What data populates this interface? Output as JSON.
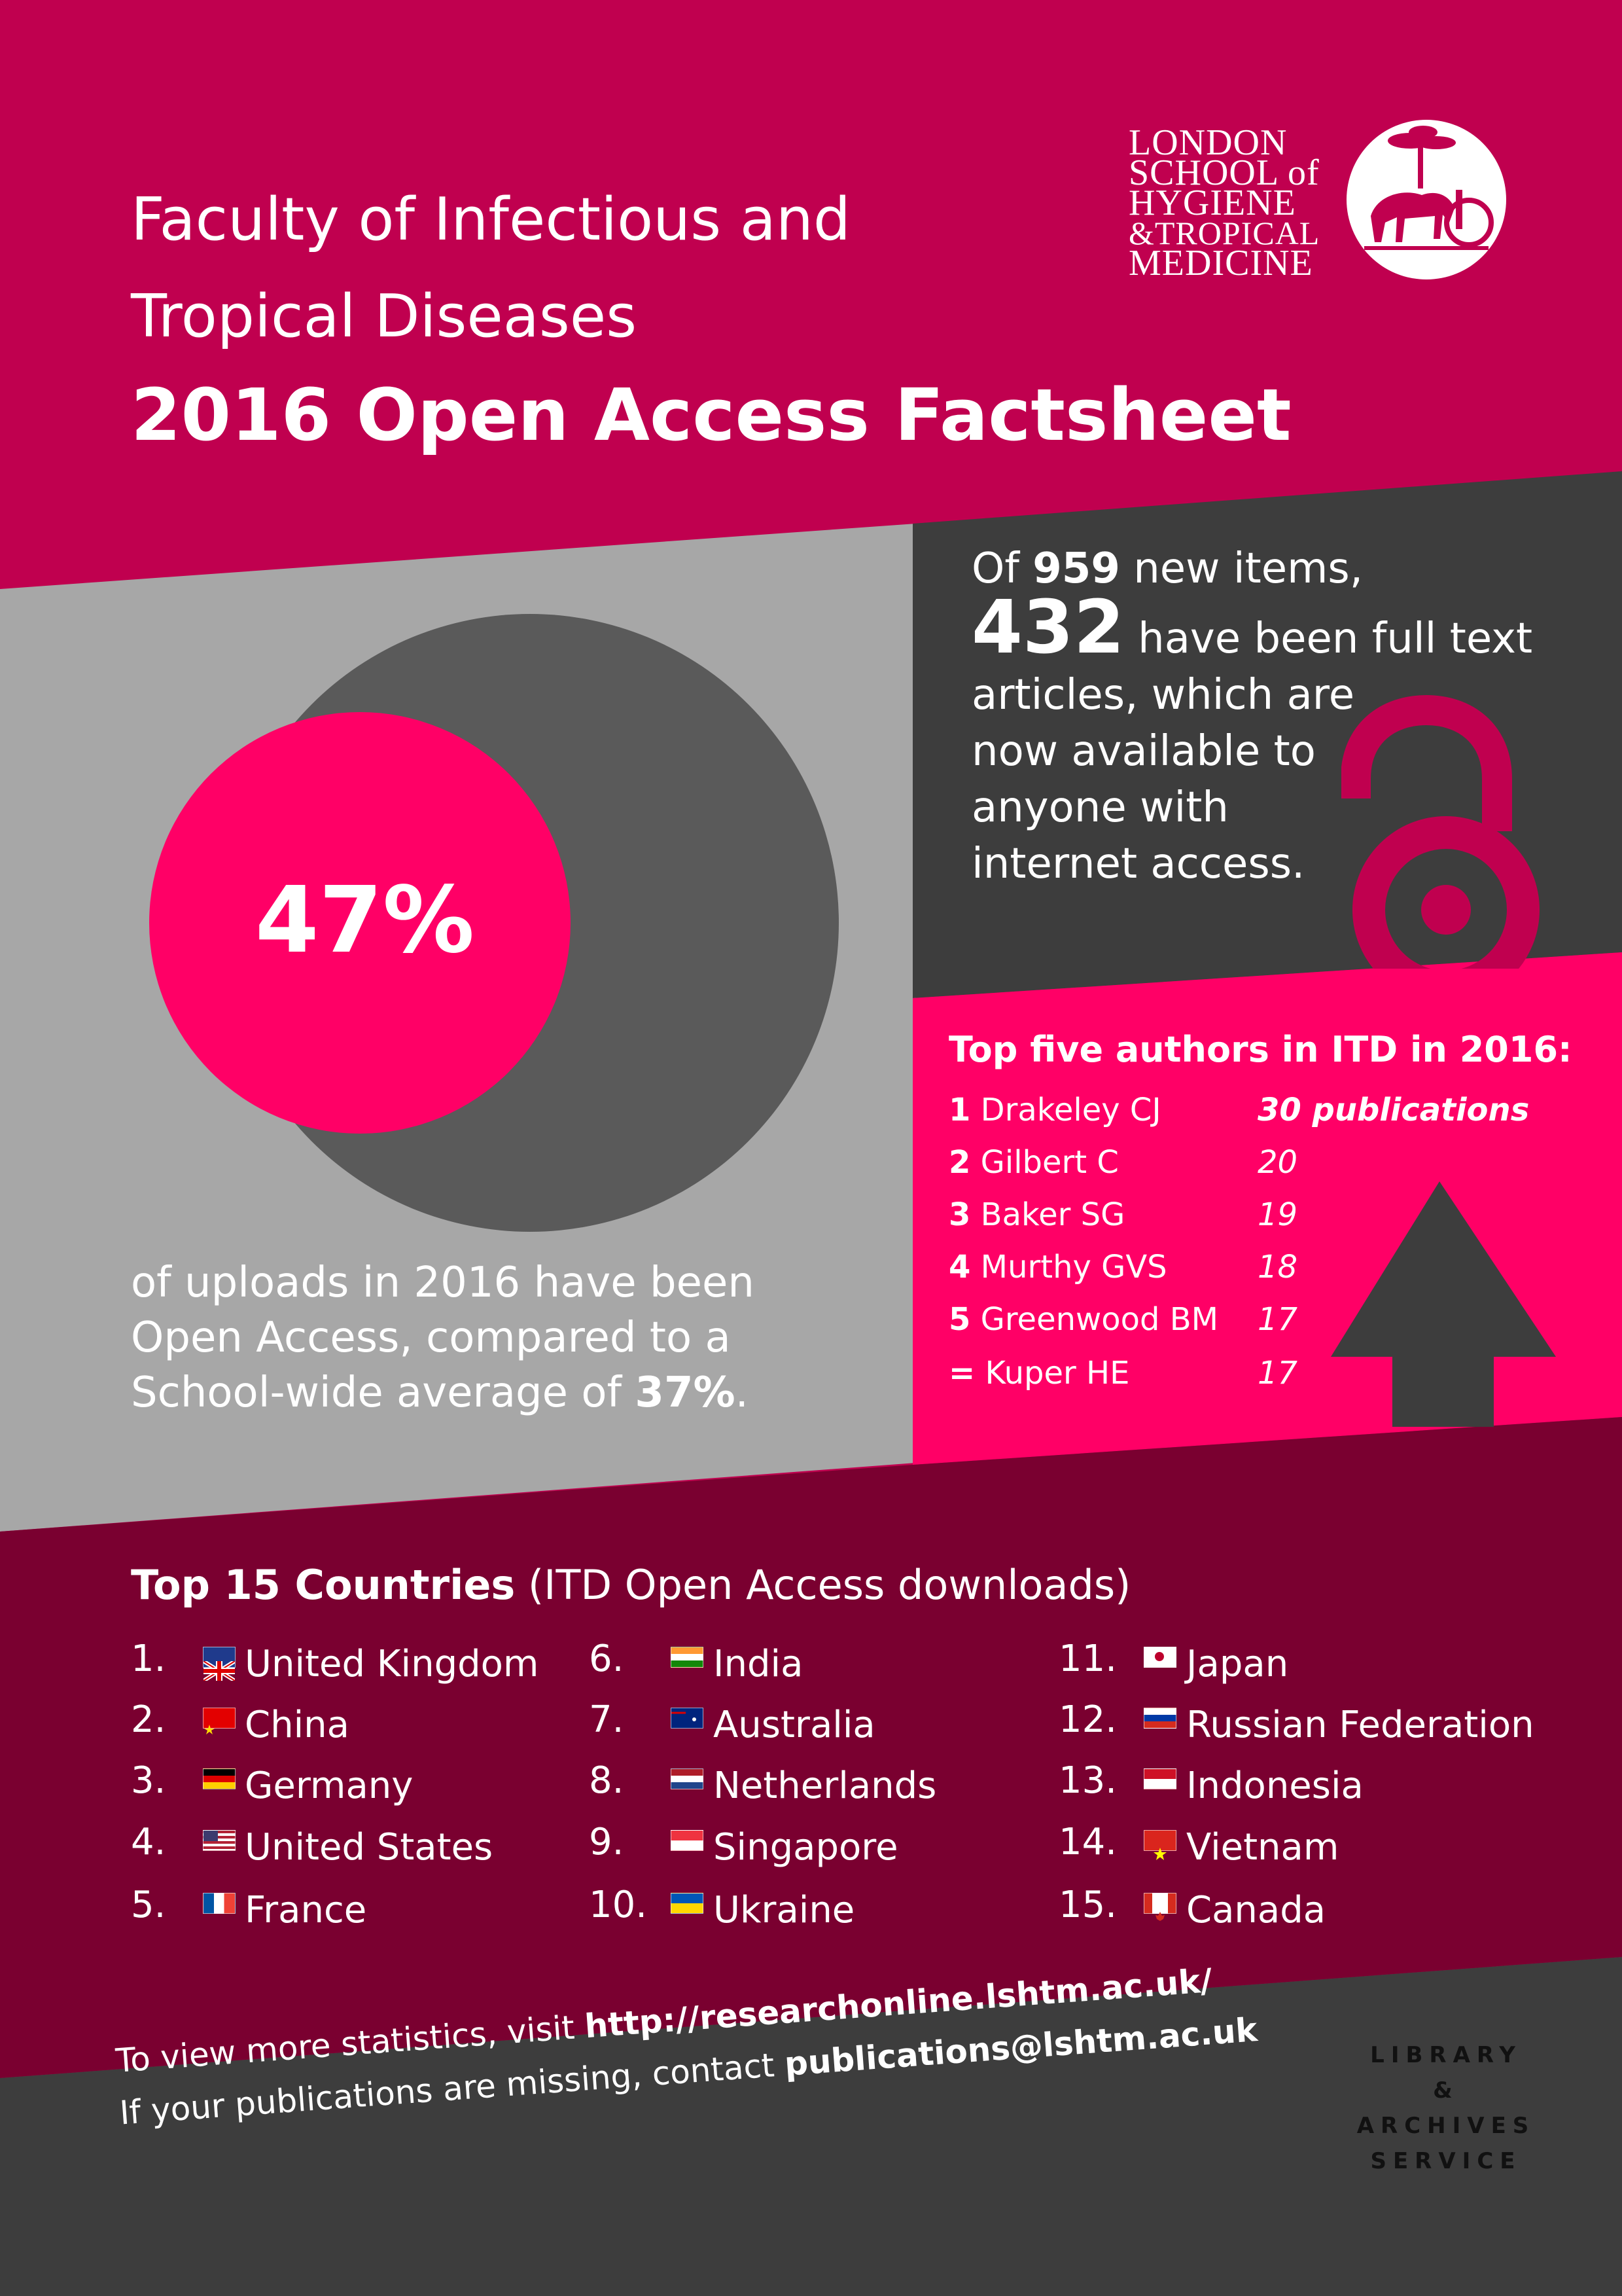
{
  "header": {
    "faculty_line1": "Faculty of Infectious and",
    "faculty_line2": "Tropical Diseases",
    "title": "2016 Open Access Factsheet"
  },
  "logo": {
    "lines": [
      "LONDON",
      "SCHOOL of",
      "HYGIENE",
      "&TROPICAL",
      "MEDICINE"
    ]
  },
  "open_access": {
    "percent_label": "47%",
    "percent_value": 47,
    "caption_line1": "of uploads in 2016 have been",
    "caption_line2": "Open Access, compared to a",
    "caption_line3_prefix": "School-wide average of ",
    "school_average": "37%",
    "caption_line3_suffix": "."
  },
  "items": {
    "line1_prefix": "Of ",
    "new_items": "959",
    "line1_suffix": " new items,",
    "full_text": "432",
    "line2_suffix": " have been full text",
    "line3": "articles, which are",
    "line4": "now available to",
    "line5": "anyone with",
    "line6": "internet access."
  },
  "authors": {
    "title": "Top five authors in ITD in 2016:",
    "rows": [
      {
        "rank": "1",
        "name": "Drakeley CJ",
        "count": "30 publications"
      },
      {
        "rank": "2",
        "name": "Gilbert C",
        "count": "20"
      },
      {
        "rank": "3",
        "name": "Baker SG",
        "count": "19"
      },
      {
        "rank": "4",
        "name": "Murthy GVS",
        "count": "18"
      },
      {
        "rank": "5",
        "name": "Greenwood BM",
        "count": "17"
      },
      {
        "rank": "=",
        "name": "Kuper HE",
        "count": "17"
      }
    ]
  },
  "countries": {
    "title_bold": "Top 15 Countries",
    "title_rest": " (ITD Open Access downloads)",
    "list": [
      {
        "num": "1.",
        "name": "United Kingdom",
        "flag": "uk-flag"
      },
      {
        "num": "2.",
        "name": "China",
        "flag": "china-flag"
      },
      {
        "num": "3.",
        "name": "Germany",
        "flag": "germany-flag"
      },
      {
        "num": "4.",
        "name": "United States",
        "flag": "usa-flag"
      },
      {
        "num": "5.",
        "name": "France",
        "flag": "france-flag"
      },
      {
        "num": "6.",
        "name": "India",
        "flag": "india-flag"
      },
      {
        "num": "7.",
        "name": "Australia",
        "flag": "australia-flag"
      },
      {
        "num": "8.",
        "name": "Netherlands",
        "flag": "netherlands-flag"
      },
      {
        "num": "9.",
        "name": "Singapore",
        "flag": "singapore-flag"
      },
      {
        "num": "10.",
        "name": "Ukraine",
        "flag": "ukraine-flag"
      },
      {
        "num": "11.",
        "name": "Japan",
        "flag": "japan-flag"
      },
      {
        "num": "12.",
        "name": "Russian Federation",
        "flag": "russia-flag"
      },
      {
        "num": "13.",
        "name": "Indonesia",
        "flag": "indonesia-flag"
      },
      {
        "num": "14.",
        "name": "Vietnam",
        "flag": "vietnam-flag"
      },
      {
        "num": "15.",
        "name": "Canada",
        "flag": "canada-flag"
      }
    ]
  },
  "footer": {
    "line1_prefix": "To view more statistics, visit ",
    "url": "http://researchonline.lshtm.ac.uk/",
    "line2_prefix": "If your publications are missing, contact ",
    "email": "publications@lshtm.ac.uk",
    "service_lines": [
      "LIBRARY",
      "&",
      "ARCHIVES",
      "SERVICE"
    ]
  },
  "colors": {
    "crimson": "#c0004f",
    "hot_pink": "#ff0066",
    "dark_maroon": "#7a0030",
    "dark_grey": "#3d3d3d",
    "light_grey": "#a7a7a7",
    "mid_grey": "#5a5a5a"
  },
  "icons": {
    "lock": "open-access-lock-icon",
    "arrow": "up-arrow-icon"
  }
}
